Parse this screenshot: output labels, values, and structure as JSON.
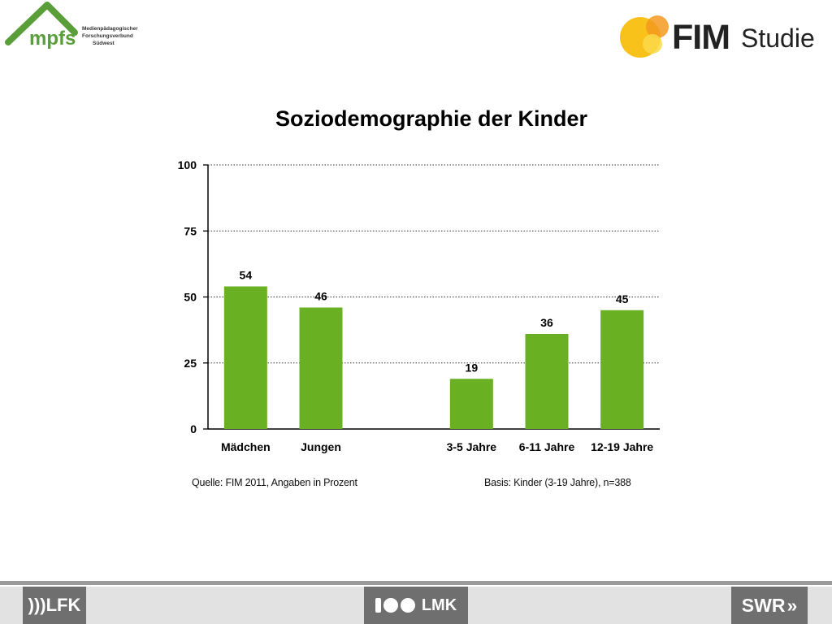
{
  "header": {
    "left_logo": {
      "word": "mpfs",
      "lines": [
        "Medienpädagogischer",
        "Forschungsverbund",
        "Südwest"
      ]
    },
    "right_logo": {
      "word": "FIM",
      "suffix": "Studie"
    }
  },
  "chart_data": {
    "type": "bar",
    "title": "Soziodemographie der Kinder",
    "xlabel": "",
    "ylabel": "",
    "categories": [
      "Mädchen",
      "Jungen",
      "",
      "3-5 Jahre",
      "6-11 Jahre",
      "12-19  Jahre"
    ],
    "values": [
      54,
      46,
      null,
      19,
      36,
      45
    ],
    "ylim": [
      0,
      100
    ],
    "yticks": [
      "0",
      "25",
      "50",
      "75",
      "100"
    ],
    "grid": true,
    "bar_color": "#6ab023"
  },
  "notes": {
    "source": "Quelle: FIM 2011,  Angaben in Prozent",
    "basis": "Basis: Kinder (3-19 Jahre), n=388"
  },
  "footer": {
    "left_logo": ")))LFK",
    "center_logo": "LMK",
    "right_logo": "SWR"
  }
}
